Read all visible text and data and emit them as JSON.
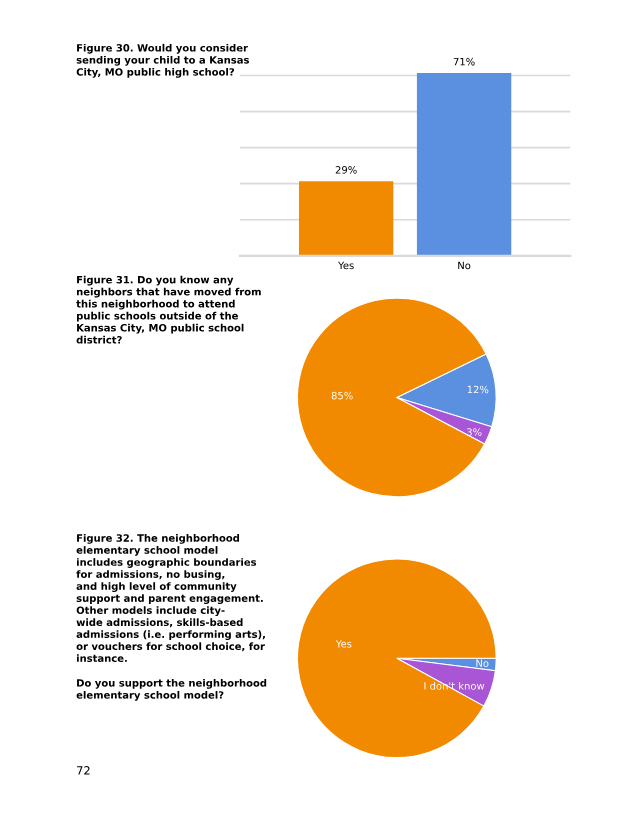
{
  "chart_data": [
    {
      "type": "bar",
      "title": "Figure 30. Would you consider\nsending your child to a Kansas\nCity, MO public high school?",
      "categories": [
        "Yes",
        "No"
      ],
      "values": [
        29,
        71
      ],
      "colors": [
        "#f28a00",
        "#5b8fe0"
      ],
      "value_labels": [
        "29%",
        "71%"
      ],
      "yticks": [
        {
          "value": 0,
          "label": null
        },
        {
          "value": 14,
          "label": null
        },
        {
          "value": 28,
          "label": null
        },
        {
          "value": 42,
          "label": null
        },
        {
          "value": 56,
          "label": null
        },
        {
          "value": 70,
          "label": null
        }
      ],
      "grid": "y"
    },
    {
      "type": "pie",
      "title": "Figure 31. Do you know any\nneighbors that have moved from\nthis neighborhood to attend\npublic schools outside of the\nKansas City, MO public school\ndistrict?",
      "categories": [
        null,
        null,
        null
      ],
      "values": [
        12,
        3,
        85
      ],
      "colors": [
        "#5b8fe0",
        "#a855d6",
        "#f28a00"
      ],
      "value_labels": [
        "12%",
        "3%",
        "85%"
      ]
    },
    {
      "type": "pie",
      "title": "Figure 32. The neighborhood\nelementary school model\nincludes geographic boundaries\nfor admissions, no busing,\nand high level of community\nsupport and parent engagement.\nOther models include city-\nwide admissions, skills-based\nadmissions (i.e. performing arts),\nor vouchers for school choice, for\ninstance.",
      "subtitle": "Do you support the neighborhood\nelementary school model?",
      "categories": [
        "No",
        "I don't know",
        "Yes"
      ],
      "values": [
        2,
        6,
        92
      ],
      "colors": [
        "#5b8fe0",
        "#a855d6",
        "#f28a00"
      ],
      "annotations": [
        "72"
      ]
    }
  ]
}
